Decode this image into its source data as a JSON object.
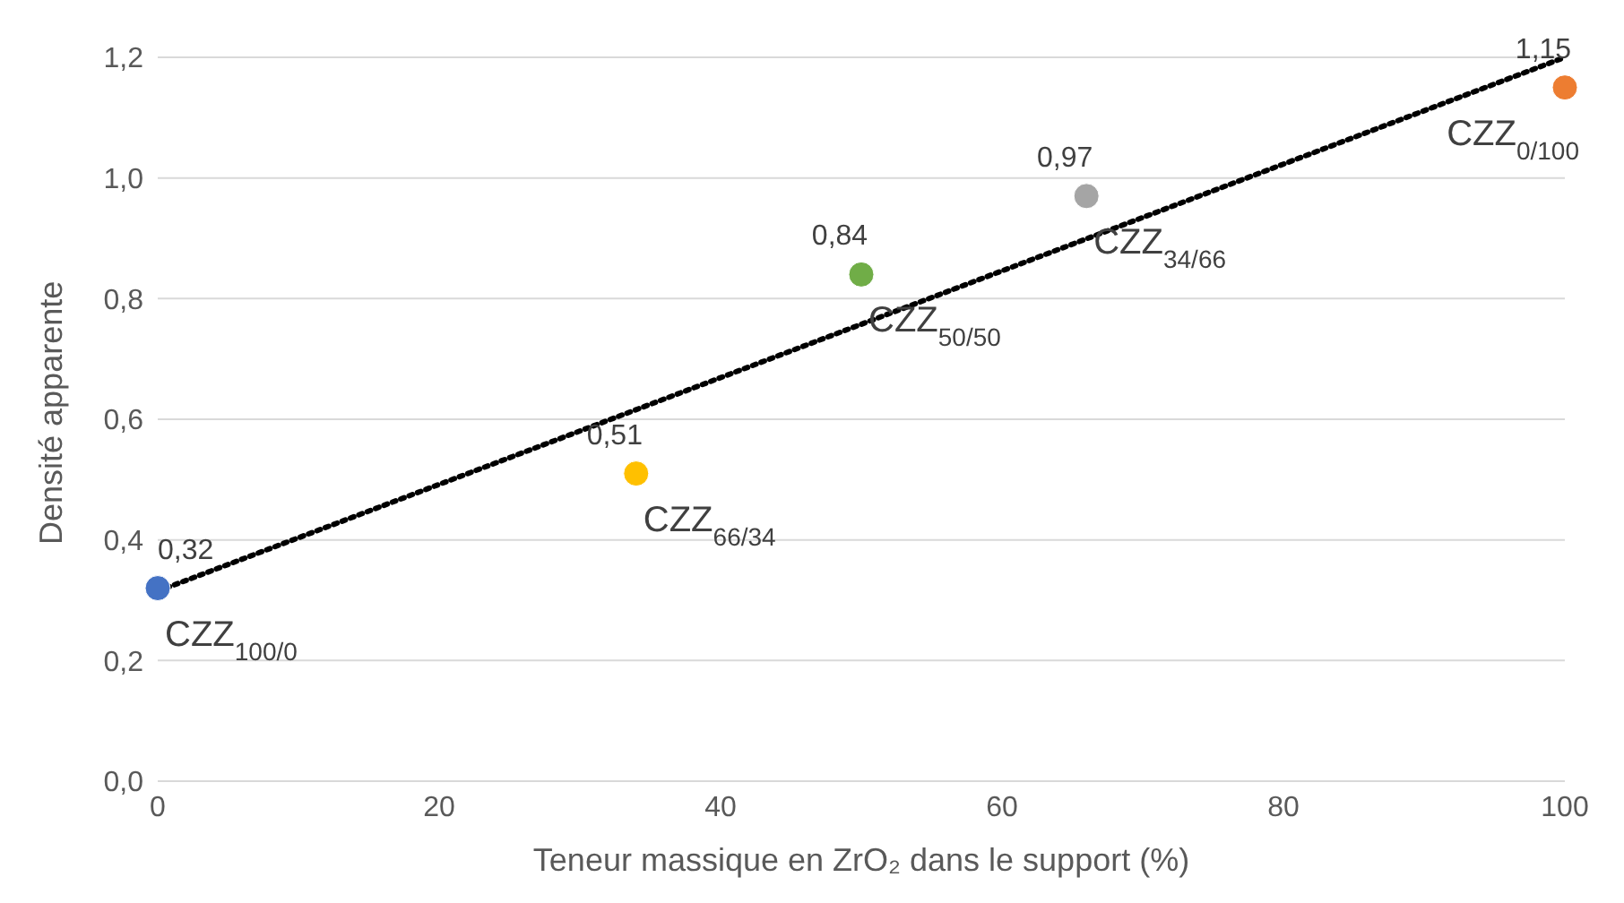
{
  "chart_data": {
    "type": "scatter",
    "xlabel": "Teneur massique en ZrO₂ dans le support (%)",
    "ylabel": "Densité apparente",
    "x": [
      0,
      34,
      50,
      66,
      100
    ],
    "series": [
      {
        "colors": [
          "#4472c4",
          "#ffc000",
          "#70ad47",
          "#a5a5a5",
          "#ed7d31"
        ],
        "values": [
          0.32,
          0.51,
          0.84,
          0.97,
          1.15
        ],
        "value_labels": [
          "0,32",
          "0,51",
          "0,84",
          "0,97",
          "1,15"
        ]
      },
      {
        "type": "line",
        "x": [
          0,
          100
        ],
        "values": [
          0.315,
          1.2
        ],
        "color": "#000000",
        "line_style": "dotted",
        "marker": "none"
      }
    ],
    "xlim": [
      0,
      100
    ],
    "xticks": [
      0,
      20,
      40,
      60,
      80,
      100
    ],
    "ylim": [
      0,
      1.2
    ],
    "yticks": [
      {
        "value": 0,
        "label": "0,0"
      },
      {
        "value": 0.2,
        "label": "0,2"
      },
      {
        "value": 0.4,
        "label": "0,4"
      },
      {
        "value": 0.6,
        "label": "0,6"
      },
      {
        "value": 0.8,
        "label": "0,8"
      },
      {
        "value": 1,
        "label": "1,0"
      },
      {
        "value": 1.2,
        "label": "1,2"
      }
    ],
    "grid": "y",
    "marker": "circle",
    "legend": false,
    "annotations": [
      {
        "text": "CZZ$_{100/0}$",
        "x": 0,
        "y": 0.32
      },
      {
        "text": "CZZ$_{66/34}$",
        "x": 34,
        "y": 0.51
      },
      {
        "text": "CZZ$_{50/50}$",
        "x": 50,
        "y": 0.84
      },
      {
        "text": "CZZ$_{34/66}$",
        "x": 66,
        "y": 0.97
      },
      {
        "text": "CZZ$_{0/100}$",
        "x": 100,
        "y": 1.15
      }
    ]
  }
}
